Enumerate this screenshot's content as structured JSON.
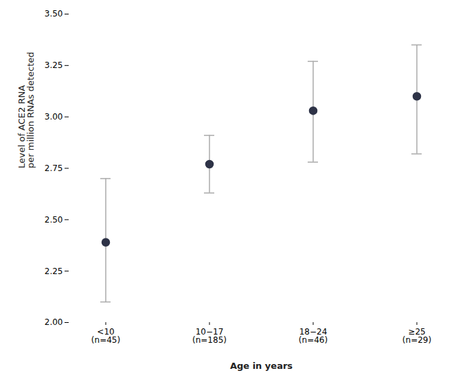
{
  "chart_data": {
    "type": "errorbar",
    "categories": [
      "<10\n(n=45)",
      "10−17\n(n=185)",
      "18−24\n(n=46)",
      "≥25\n(n=29)"
    ],
    "values": [
      2.39,
      2.77,
      3.03,
      3.1
    ],
    "lower_errors": [
      0.29,
      0.14,
      0.25,
      0.28
    ],
    "upper_errors": [
      0.31,
      0.14,
      0.24,
      0.25
    ],
    "color": "#2e3347",
    "ylim": [
      2.0,
      3.5
    ],
    "yticks": [
      {
        "value": 2.0,
        "label": "2.00"
      },
      {
        "value": 2.25,
        "label": "2.25"
      },
      {
        "value": 2.5,
        "label": "2.50"
      },
      {
        "value": 2.75,
        "label": "2.75"
      },
      {
        "value": 3.0,
        "label": "3.00"
      },
      {
        "value": 3.25,
        "label": "3.25"
      },
      {
        "value": 3.5,
        "label": "3.50"
      }
    ],
    "ylabel": "Level of ACE2 RNA\nper million RNAs detected",
    "xlabel": "Age in years",
    "grid": false
  }
}
